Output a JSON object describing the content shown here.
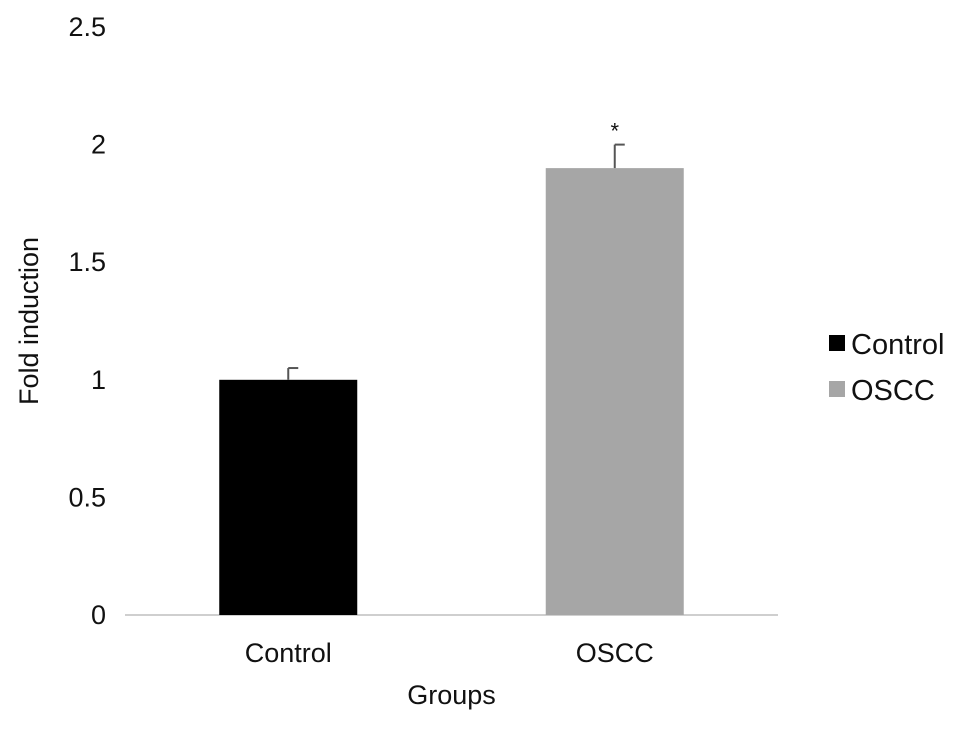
{
  "chart_data": {
    "type": "bar",
    "title": "",
    "xlabel": "Groups",
    "ylabel": "Fold induction",
    "categories": [
      "Control",
      "OSCC"
    ],
    "values": [
      1.0,
      1.9
    ],
    "errors": [
      0.05,
      0.1
    ],
    "annotations": [
      "",
      "*"
    ],
    "colors": [
      "#000000",
      "#a6a6a6"
    ],
    "ylim": [
      0,
      2.5
    ],
    "yticks": [
      "0",
      "0.5",
      "1",
      "1.5",
      "2",
      "2.5"
    ],
    "ytick_values": [
      0,
      0.5,
      1,
      1.5,
      2,
      2.5
    ],
    "grid": false,
    "legend": {
      "position": "right",
      "entries": [
        "Control",
        "OSCC"
      ]
    }
  }
}
